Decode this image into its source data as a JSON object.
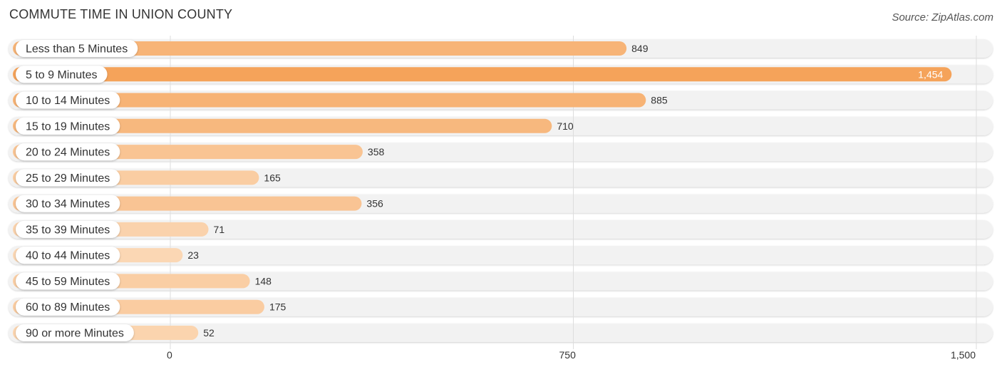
{
  "header": {
    "title": "COMMUTE TIME IN UNION COUNTY",
    "source": "Source: ZipAtlas.com"
  },
  "colors": {
    "bar_max": "#f5a35a",
    "bar_min": "#fbd7b4",
    "track": "#f2f2f2",
    "grid": "#dddddd"
  },
  "chart_data": {
    "type": "bar",
    "orientation": "horizontal",
    "title": "COMMUTE TIME IN UNION COUNTY",
    "categories": [
      "Less than 5 Minutes",
      "5 to 9 Minutes",
      "10 to 14 Minutes",
      "15 to 19 Minutes",
      "20 to 24 Minutes",
      "25 to 29 Minutes",
      "30 to 34 Minutes",
      "35 to 39 Minutes",
      "40 to 44 Minutes",
      "45 to 59 Minutes",
      "60 to 89 Minutes",
      "90 or more Minutes"
    ],
    "values": [
      849,
      1454,
      885,
      710,
      358,
      165,
      356,
      71,
      23,
      148,
      175,
      52
    ],
    "value_labels": [
      "849",
      "1,454",
      "885",
      "710",
      "358",
      "165",
      "356",
      "71",
      "23",
      "148",
      "175",
      "52"
    ],
    "xlim": [
      0,
      1500
    ],
    "xticks": [
      0,
      750,
      1500
    ],
    "xtick_labels": [
      "0",
      "750",
      "1,500"
    ],
    "xlabel": "",
    "ylabel": "",
    "grid": true,
    "legend": "none"
  }
}
